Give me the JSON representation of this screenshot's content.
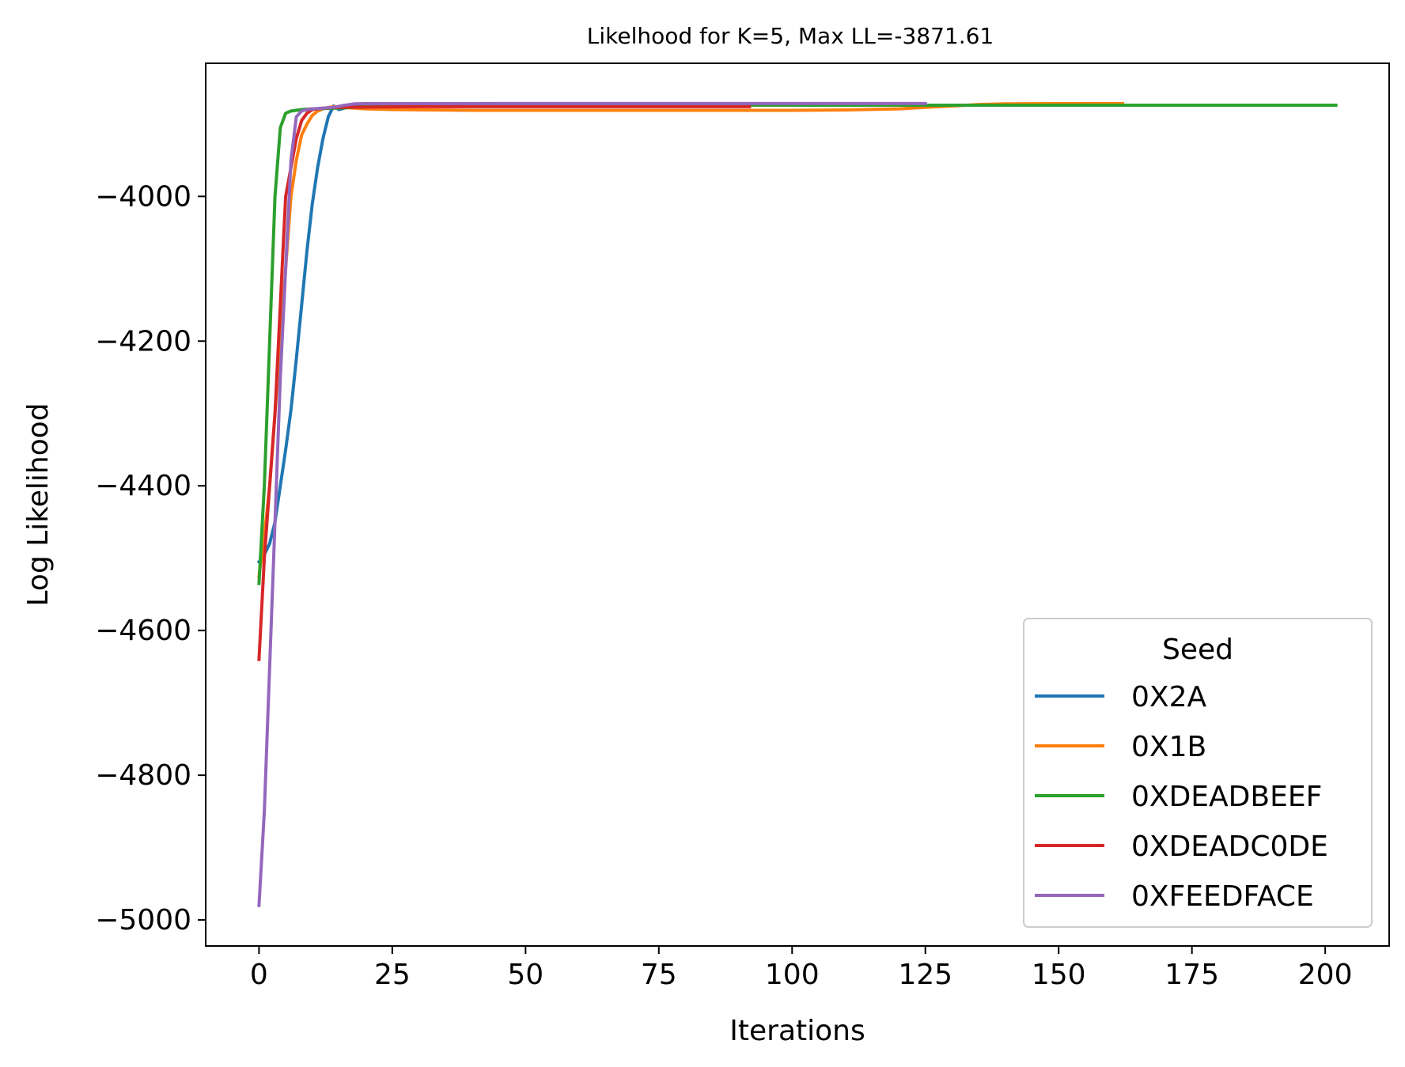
{
  "chart_data": {
    "type": "line",
    "title": "Likelhood for K=5,  Max LL=-3871.61",
    "xlabel": "Iterations",
    "ylabel": "Log Likelihood",
    "xlim": [
      -10,
      212
    ],
    "ylim": [
      -5036,
      -3816
    ],
    "xticks": [
      0,
      25,
      50,
      75,
      100,
      125,
      150,
      175,
      200
    ],
    "yticks": [
      -5000,
      -4800,
      -4600,
      -4400,
      -4200,
      -4000
    ],
    "grid": false,
    "legend": {
      "title": "Seed",
      "position": "lower-right"
    },
    "series": [
      {
        "name": "0X2A",
        "color": "#1f77b4",
        "x": [
          0,
          1,
          2,
          3,
          4,
          5,
          6,
          7,
          8,
          9,
          10,
          11,
          12,
          13,
          14,
          15,
          16,
          17,
          18,
          20,
          25,
          30,
          40,
          60,
          72
        ],
        "y": [
          -4505,
          -4495,
          -4480,
          -4450,
          -4400,
          -4350,
          -4295,
          -4225,
          -4150,
          -4075,
          -4010,
          -3960,
          -3920,
          -3890,
          -3875,
          -3880,
          -3878,
          -3876,
          -3875,
          -3874,
          -3873.5,
          -3873,
          -3872.5,
          -3872,
          -3872
        ]
      },
      {
        "name": "0X1B",
        "color": "#ff7f0e",
        "x": [
          0,
          1,
          2,
          3,
          4,
          5,
          6,
          7,
          8,
          9,
          10,
          11,
          12,
          13,
          14,
          15,
          16,
          18,
          20,
          25,
          40,
          60,
          80,
          100,
          110,
          120,
          125,
          130,
          135,
          140,
          150,
          162
        ],
        "y": [
          -4525,
          -4470,
          -4400,
          -4300,
          -4200,
          -4100,
          -4000,
          -3950,
          -3915,
          -3900,
          -3888,
          -3882,
          -3879,
          -3877,
          -3876,
          -3876,
          -3877,
          -3878,
          -3879,
          -3880,
          -3881,
          -3881,
          -3881,
          -3881,
          -3880.5,
          -3879,
          -3877,
          -3875,
          -3873,
          -3872,
          -3871.7,
          -3871.6
        ]
      },
      {
        "name": "0XDEADBEEF",
        "color": "#2ca02c",
        "x": [
          0,
          1,
          2,
          3,
          4,
          5,
          6,
          7,
          8,
          10,
          15,
          20,
          30,
          50,
          80,
          100,
          120,
          150,
          180,
          202
        ],
        "y": [
          -4535,
          -4400,
          -4200,
          -4000,
          -3905,
          -3885,
          -3882,
          -3881,
          -3880,
          -3879,
          -3878,
          -3876,
          -3875,
          -3874,
          -3874,
          -3874,
          -3874,
          -3874,
          -3874,
          -3874
        ]
      },
      {
        "name": "0XDEADC0DE",
        "color": "#d62728",
        "x": [
          0,
          1,
          2,
          3,
          4,
          5,
          6,
          7,
          8,
          9,
          10,
          11,
          12,
          13,
          15,
          20,
          30,
          50,
          70,
          92
        ],
        "y": [
          -4640,
          -4500,
          -4400,
          -4300,
          -4150,
          -4000,
          -3960,
          -3920,
          -3895,
          -3885,
          -3880,
          -3879,
          -3878,
          -3877.5,
          -3877,
          -3876.5,
          -3876,
          -3876,
          -3876,
          -3876
        ]
      },
      {
        "name": "0XFEEDFACE",
        "color": "#9467bd",
        "x": [
          0,
          1,
          2,
          3,
          4,
          5,
          6,
          7,
          8,
          9,
          10,
          12,
          14,
          16,
          18,
          20,
          30,
          60,
          90,
          110,
          125
        ],
        "y": [
          -4980,
          -4850,
          -4650,
          -4450,
          -4250,
          -4100,
          -3950,
          -3890,
          -3882,
          -3880,
          -3879,
          -3878,
          -3877,
          -3874,
          -3872,
          -3871.8,
          -3871.7,
          -3871.6,
          -3871.6,
          -3871.6,
          -3871.6
        ]
      }
    ]
  }
}
